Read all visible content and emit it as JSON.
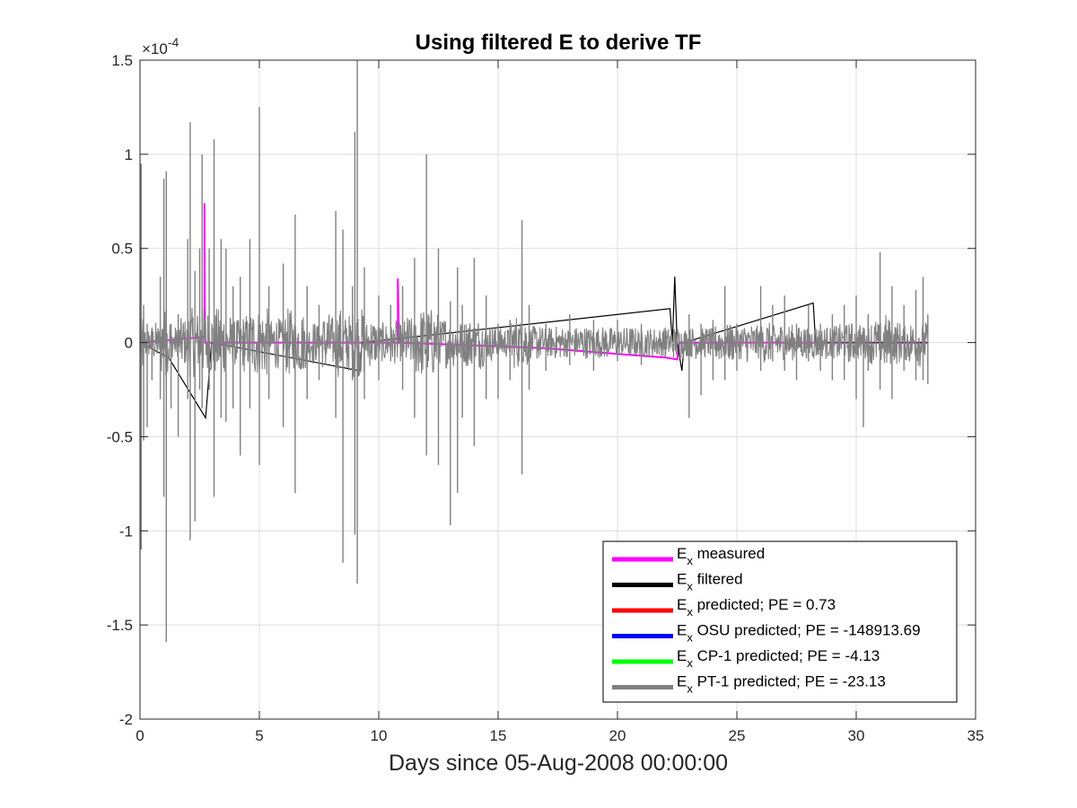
{
  "chart_data": {
    "type": "line",
    "title": "Using filtered E to derive TF",
    "xlabel": "Days since 05-Aug-2008 00:00:00",
    "ylabel": "",
    "xlim": [
      0,
      35
    ],
    "ylim": [
      -2,
      1.5
    ],
    "y_exponent_label": "×10",
    "y_exponent_power": "-4",
    "x_ticks": [
      0,
      5,
      10,
      15,
      20,
      25,
      30,
      35
    ],
    "x_tick_labels": [
      "0",
      "5",
      "10",
      "15",
      "20",
      "25",
      "30",
      "35"
    ],
    "y_ticks": [
      -2,
      -1.5,
      -1,
      -0.5,
      0,
      0.5,
      1,
      1.5
    ],
    "y_tick_labels": [
      "-2",
      "-1.5",
      "-1",
      "-0.5",
      "0",
      "0.5",
      "1",
      "1.5"
    ],
    "grid": true,
    "legend_position": "bottom-right",
    "data_extent_x": [
      0,
      33
    ],
    "series": [
      {
        "name_main": "E",
        "name_sub": "x",
        "name_rest": " measured",
        "color": "#ff00ff",
        "points": [
          [
            0,
            0
          ],
          [
            2.7,
            0.03
          ],
          [
            2.7,
            0.74
          ],
          [
            2.72,
            0
          ],
          [
            10.8,
            0
          ],
          [
            10.8,
            0.34
          ],
          [
            10.85,
            0
          ],
          [
            15,
            -0.02
          ],
          [
            17,
            -0.03
          ],
          [
            19,
            -0.05
          ],
          [
            20,
            -0.06
          ],
          [
            21,
            -0.07
          ],
          [
            22,
            -0.08
          ],
          [
            22.5,
            -0.09
          ],
          [
            22.6,
            0
          ],
          [
            33,
            0
          ]
        ]
      },
      {
        "name_main": "E",
        "name_sub": "x",
        "name_rest": " filtered",
        "color": "#000000",
        "points": [
          [
            0,
            0
          ],
          [
            1.2,
            -0.08
          ],
          [
            2.75,
            -0.4
          ],
          [
            3,
            0
          ],
          [
            9.2,
            -0.15
          ],
          [
            9.3,
            0
          ],
          [
            22.2,
            0.18
          ],
          [
            22.3,
            0
          ],
          [
            22.4,
            0.35
          ],
          [
            22.5,
            0
          ],
          [
            22.7,
            -0.15
          ],
          [
            22.8,
            0
          ],
          [
            28.2,
            0.21
          ],
          [
            28.3,
            0
          ],
          [
            33,
            0
          ]
        ]
      },
      {
        "name_main": "E",
        "name_sub": "x",
        "name_rest": " predicted; PE = 0.73",
        "color": "#ff0000",
        "points": []
      },
      {
        "name_main": "E",
        "name_sub": "x",
        "name_rest": " OSU predicted; PE = -148913.69",
        "color": "#0000ff",
        "points": []
      },
      {
        "name_main": "E",
        "name_sub": "x",
        "name_rest": " CP-1 predicted; PE = -4.13",
        "color": "#00ff00",
        "points": []
      },
      {
        "name_main": "E",
        "name_sub": "x",
        "name_rest": " PT-1 predicted; PE = -23.13",
        "color": "#808080",
        "spikes": [
          [
            0.05,
            0.95,
            -1.1
          ],
          [
            0.15,
            0.2,
            -0.52
          ],
          [
            0.3,
            0.1,
            -0.45
          ],
          [
            0.5,
            0.08,
            -0.2
          ],
          [
            0.85,
            0.35,
            -0.3
          ],
          [
            1.0,
            0.87,
            -0.82
          ],
          [
            1.1,
            0.91,
            -1.59
          ],
          [
            1.3,
            0.1,
            -0.35
          ],
          [
            1.6,
            0.15,
            -0.5
          ],
          [
            2.0,
            0.55,
            -0.3
          ],
          [
            2.1,
            1.17,
            -1.05
          ],
          [
            2.3,
            0.38,
            -0.95
          ],
          [
            2.5,
            0.5,
            -0.25
          ],
          [
            2.6,
            1.0,
            -0.35
          ],
          [
            2.9,
            0.5,
            -0.25
          ],
          [
            3.1,
            1.08,
            -0.82
          ],
          [
            3.4,
            0.55,
            -0.4
          ],
          [
            3.6,
            0.5,
            -0.42
          ],
          [
            3.9,
            0.3,
            -0.35
          ],
          [
            4.2,
            0.35,
            -0.6
          ],
          [
            4.6,
            0.55,
            -0.35
          ],
          [
            5.0,
            1.25,
            -0.65
          ],
          [
            5.4,
            0.3,
            -0.3
          ],
          [
            6.0,
            0.42,
            -0.45
          ],
          [
            6.5,
            0.68,
            -0.8
          ],
          [
            7.0,
            0.3,
            -0.3
          ],
          [
            7.5,
            0.2,
            -0.2
          ],
          [
            8.2,
            0.7,
            -0.4
          ],
          [
            8.5,
            0.6,
            -1.17
          ],
          [
            8.9,
            0.3,
            -0.2
          ],
          [
            9.0,
            1.12,
            -1.02
          ],
          [
            9.1,
            1.5,
            -1.28
          ],
          [
            9.4,
            0.4,
            -0.3
          ],
          [
            10.0,
            0.25,
            -0.2
          ],
          [
            10.5,
            0.2,
            -0.1
          ],
          [
            11.0,
            0.3,
            -0.25
          ],
          [
            11.5,
            0.45,
            -0.4
          ],
          [
            12.0,
            1.0,
            -0.6
          ],
          [
            12.5,
            0.5,
            -0.65
          ],
          [
            13.0,
            0.22,
            -0.97
          ],
          [
            13.3,
            0.4,
            -0.8
          ],
          [
            13.5,
            0.2,
            -0.4
          ],
          [
            14.0,
            0.45,
            -0.55
          ],
          [
            14.5,
            0.25,
            -0.3
          ],
          [
            15.0,
            0.1,
            -0.3
          ],
          [
            15.5,
            0.12,
            -0.2
          ],
          [
            16.0,
            0.65,
            -0.7
          ],
          [
            16.3,
            0.2,
            -0.25
          ],
          [
            17.0,
            0.1,
            -0.15
          ],
          [
            18.0,
            0.15,
            -0.12
          ],
          [
            19.0,
            0.12,
            -0.15
          ],
          [
            20.0,
            0.12,
            -0.1
          ],
          [
            21.0,
            0.1,
            -0.12
          ],
          [
            22.0,
            0.08,
            -0.08
          ],
          [
            23.0,
            0.15,
            -0.4
          ],
          [
            23.5,
            0.1,
            -0.28
          ],
          [
            24.0,
            0.12,
            -0.2
          ],
          [
            24.5,
            0.3,
            -0.2
          ],
          [
            25.0,
            0.1,
            -0.15
          ],
          [
            26.0,
            0.3,
            -0.15
          ],
          [
            26.5,
            0.2,
            -0.1
          ],
          [
            27.0,
            0.25,
            -0.15
          ],
          [
            27.5,
            0.1,
            -0.2
          ],
          [
            28.0,
            0.2,
            -0.1
          ],
          [
            28.5,
            0.1,
            -0.15
          ],
          [
            29.0,
            0.15,
            -0.2
          ],
          [
            29.5,
            0.2,
            -0.2
          ],
          [
            30.0,
            0.25,
            -0.3
          ],
          [
            30.3,
            0.08,
            -0.45
          ],
          [
            30.5,
            0.15,
            -0.15
          ],
          [
            31.0,
            0.48,
            -0.25
          ],
          [
            31.5,
            0.3,
            -0.3
          ],
          [
            32.0,
            0.2,
            -0.15
          ],
          [
            32.5,
            0.28,
            -0.2
          ],
          [
            32.8,
            0.35,
            -0.2
          ],
          [
            33.0,
            0.15,
            -0.22
          ]
        ]
      }
    ]
  }
}
